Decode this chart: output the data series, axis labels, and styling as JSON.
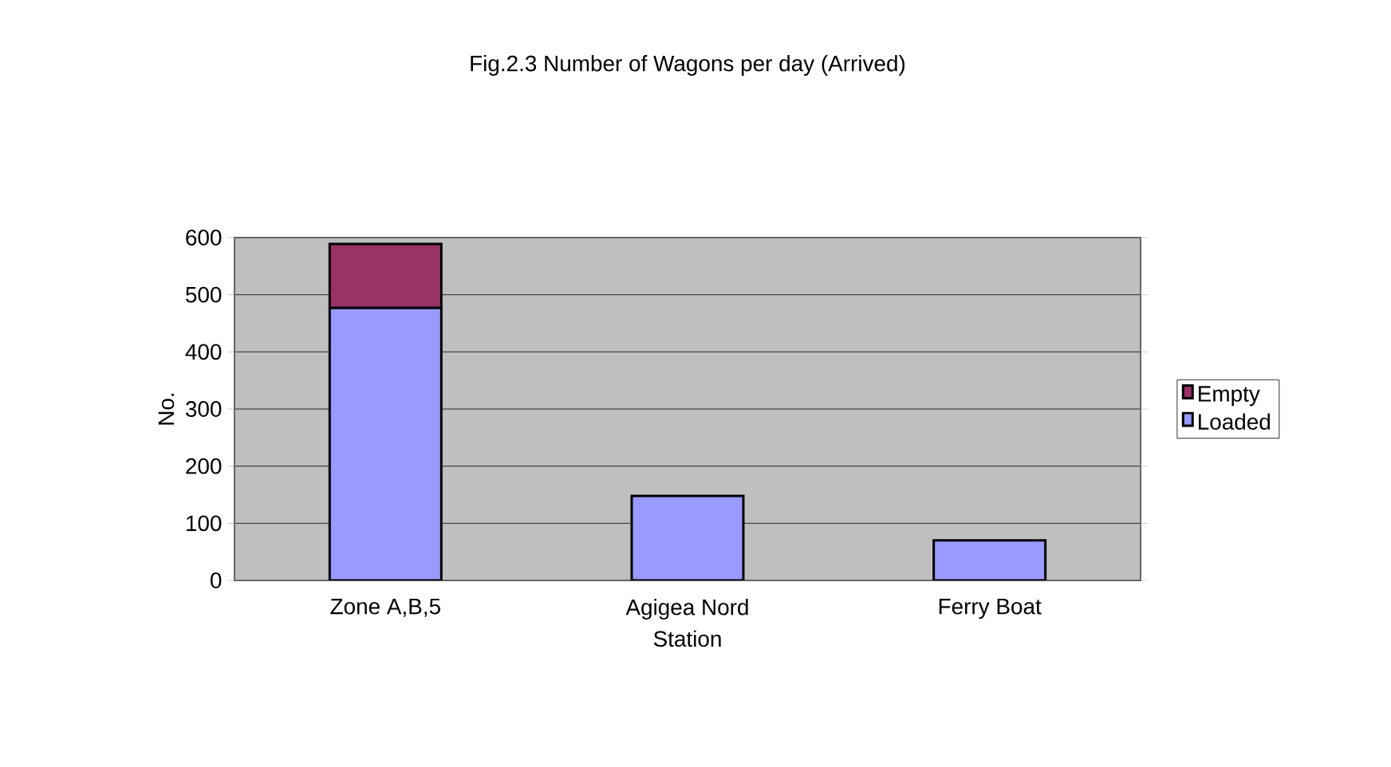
{
  "chart_data": {
    "type": "bar",
    "title": "Fig.2.3 Number of Wagons per day (Arrived)",
    "xlabel": "Station",
    "ylabel": "No.",
    "categories": [
      "Zone A,B,5",
      "Agigea Nord",
      "Ferry Boat"
    ],
    "stacked": true,
    "series": [
      {
        "name": "Loaded",
        "color": "#9999ff",
        "values": [
          477,
          148,
          70
        ]
      },
      {
        "name": "Empty",
        "color": "#993366",
        "values": [
          112,
          null,
          null
        ]
      }
    ],
    "ylim": [
      0,
      600
    ],
    "yticks": [
      0,
      100,
      200,
      300,
      400,
      500,
      600
    ],
    "grid": "y",
    "legend": "right"
  }
}
